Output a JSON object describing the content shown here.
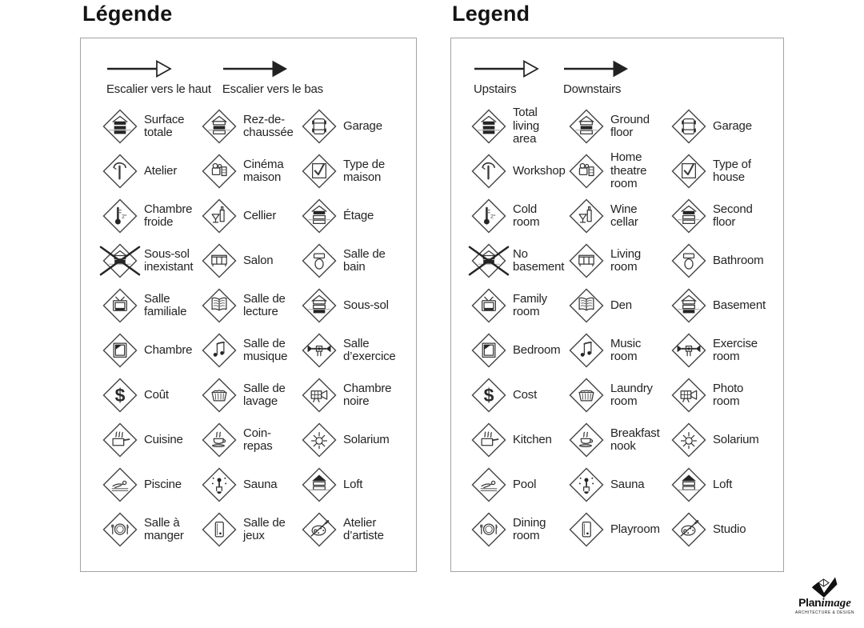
{
  "panels": [
    {
      "id": "french",
      "title": "Légende",
      "arrows": [
        {
          "icon": "stairs-up-arrow",
          "style": "outline",
          "label": "Escalier vers le haut"
        },
        {
          "icon": "stairs-down-arrow",
          "style": "filled",
          "label": "Escalier vers le bas"
        }
      ],
      "items": [
        {
          "icon": "total-living-area",
          "label": "Surface\ntotale"
        },
        {
          "icon": "ground-floor",
          "label": "Rez-de-\nchaussée"
        },
        {
          "icon": "garage",
          "label": "Garage"
        },
        {
          "icon": "workshop",
          "label": "Atelier"
        },
        {
          "icon": "home-theatre",
          "label": "Cinéma\nmaison"
        },
        {
          "icon": "type-of-house",
          "label": "Type de\nmaison"
        },
        {
          "icon": "cold-room",
          "label": "Chambre\nfroide"
        },
        {
          "icon": "wine-cellar",
          "label": "Cellier"
        },
        {
          "icon": "second-floor",
          "label": "Étage"
        },
        {
          "icon": "no-basement",
          "label": "Sous-sol\ninexistant"
        },
        {
          "icon": "living-room",
          "label": "Salon"
        },
        {
          "icon": "bathroom",
          "label": "Salle de\nbain"
        },
        {
          "icon": "family-room",
          "label": "Salle\nfamiliale"
        },
        {
          "icon": "den",
          "label": "Salle de\nlecture"
        },
        {
          "icon": "basement",
          "label": "Sous-sol"
        },
        {
          "icon": "bedroom",
          "label": "Chambre"
        },
        {
          "icon": "music-room",
          "label": "Salle de\nmusique"
        },
        {
          "icon": "exercise-room",
          "label": "Salle\nd’exercice"
        },
        {
          "icon": "cost",
          "label": "Coût"
        },
        {
          "icon": "laundry-room",
          "label": "Salle de\nlavage"
        },
        {
          "icon": "photo-room",
          "label": "Chambre\nnoire"
        },
        {
          "icon": "kitchen",
          "label": "Cuisine"
        },
        {
          "icon": "breakfast-nook",
          "label": "Coin-\nrepas"
        },
        {
          "icon": "solarium",
          "label": "Solarium"
        },
        {
          "icon": "pool",
          "label": "Piscine"
        },
        {
          "icon": "sauna",
          "label": "Sauna"
        },
        {
          "icon": "loft",
          "label": "Loft"
        },
        {
          "icon": "dining-room",
          "label": "Salle à\nmanger"
        },
        {
          "icon": "playroom",
          "label": "Salle de\njeux"
        },
        {
          "icon": "studio",
          "label": "Atelier\nd’artiste"
        }
      ]
    },
    {
      "id": "english",
      "title": "Legend",
      "arrows": [
        {
          "icon": "stairs-up-arrow",
          "style": "outline",
          "label": "Upstairs"
        },
        {
          "icon": "stairs-down-arrow",
          "style": "filled",
          "label": "Downstairs"
        }
      ],
      "items": [
        {
          "icon": "total-living-area",
          "label": "Total\nliving\narea"
        },
        {
          "icon": "ground-floor",
          "label": "Ground\nfloor"
        },
        {
          "icon": "garage",
          "label": "Garage"
        },
        {
          "icon": "workshop",
          "label": "Workshop"
        },
        {
          "icon": "home-theatre",
          "label": "Home\ntheatre\nroom"
        },
        {
          "icon": "type-of-house",
          "label": "Type of\nhouse"
        },
        {
          "icon": "cold-room",
          "label": "Cold\nroom"
        },
        {
          "icon": "wine-cellar",
          "label": "Wine\ncellar"
        },
        {
          "icon": "second-floor",
          "label": "Second\nfloor"
        },
        {
          "icon": "no-basement",
          "label": "No\nbasement"
        },
        {
          "icon": "living-room",
          "label": "Living\nroom"
        },
        {
          "icon": "bathroom",
          "label": "Bathroom"
        },
        {
          "icon": "family-room",
          "label": "Family\nroom"
        },
        {
          "icon": "den",
          "label": "Den"
        },
        {
          "icon": "basement",
          "label": "Basement"
        },
        {
          "icon": "bedroom",
          "label": "Bedroom"
        },
        {
          "icon": "music-room",
          "label": "Music\nroom"
        },
        {
          "icon": "exercise-room",
          "label": "Exercise\nroom"
        },
        {
          "icon": "cost",
          "label": "Cost"
        },
        {
          "icon": "laundry-room",
          "label": "Laundry\nroom"
        },
        {
          "icon": "photo-room",
          "label": "Photo\nroom"
        },
        {
          "icon": "kitchen",
          "label": "Kitchen"
        },
        {
          "icon": "breakfast-nook",
          "label": "Breakfast\nnook"
        },
        {
          "icon": "solarium",
          "label": "Solarium"
        },
        {
          "icon": "pool",
          "label": "Pool"
        },
        {
          "icon": "sauna",
          "label": "Sauna"
        },
        {
          "icon": "loft",
          "label": "Loft"
        },
        {
          "icon": "dining-room",
          "label": "Dining\nroom"
        },
        {
          "icon": "playroom",
          "label": "Playroom"
        },
        {
          "icon": "studio",
          "label": "Studio"
        }
      ]
    }
  ],
  "cold_room_temp": "2°",
  "cost_symbol": "$",
  "logo": {
    "brand_bold": "Plan",
    "brand_italic": "image",
    "tagline": "ARCHITECTURE & DESIGN"
  },
  "colors": {
    "ink": "#141414",
    "label_text": "#242424",
    "panel_border": "#a3a3a3",
    "icon_stroke": "#3a3a3a",
    "icon_fill": "#242424",
    "ground_line": "#9a9a9a"
  }
}
